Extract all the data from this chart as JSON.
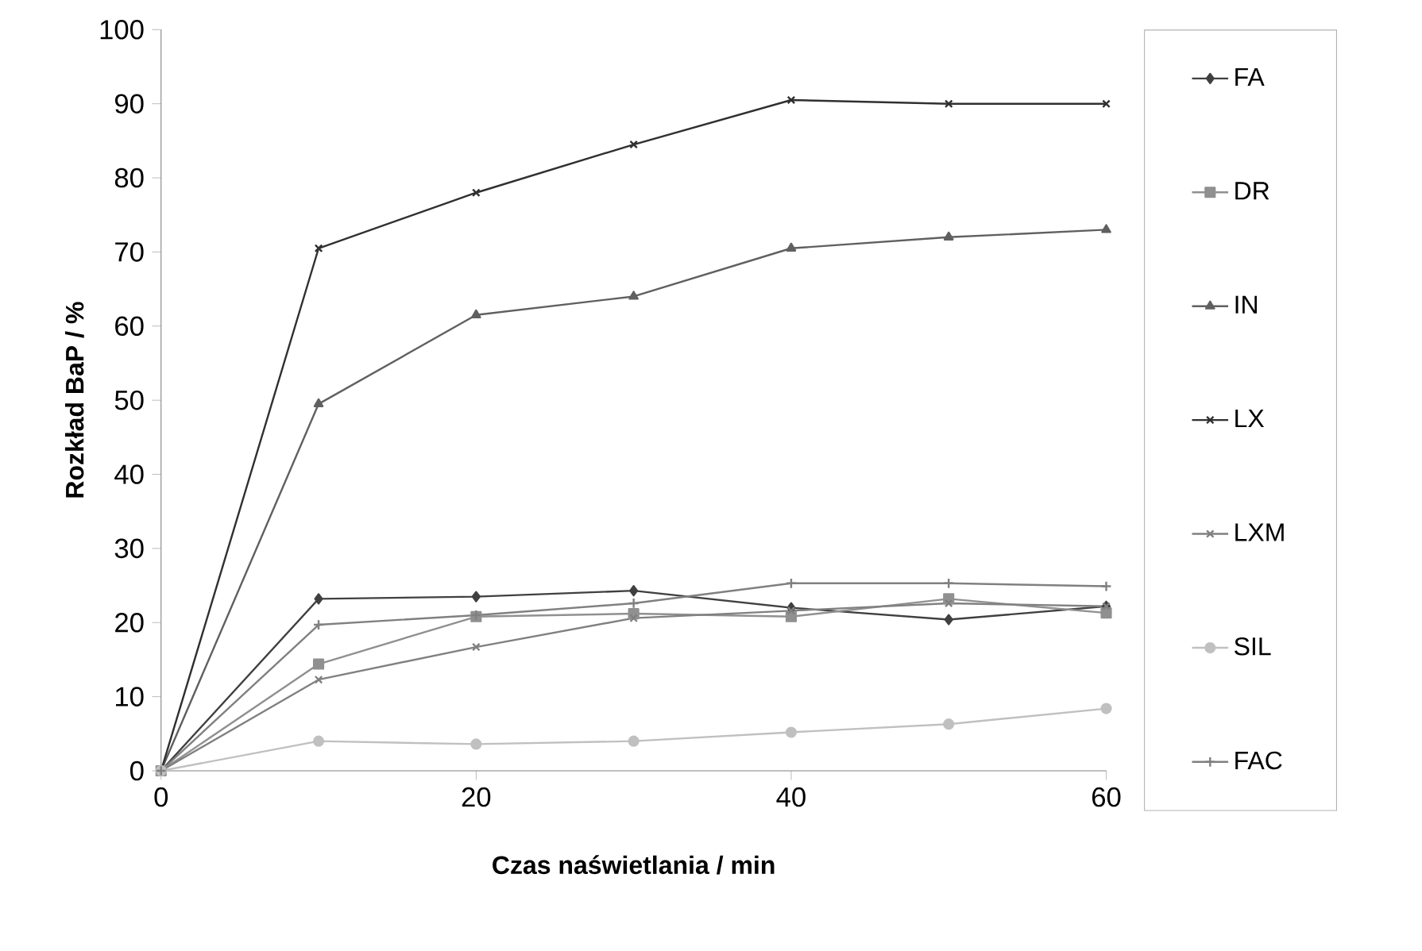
{
  "chart_data": {
    "type": "line",
    "xlabel": "Czas naświetlania  / min",
    "ylabel": "Rozkład BaP / %",
    "x": [
      0,
      10,
      20,
      30,
      40,
      50,
      60
    ],
    "xlim": [
      0,
      60
    ],
    "xticks": [
      0,
      20,
      40,
      60
    ],
    "ylim": [
      0,
      100
    ],
    "yticks": [
      0,
      10,
      20,
      30,
      40,
      50,
      60,
      70,
      80,
      90,
      100
    ],
    "grid": false,
    "legend": "right",
    "line_style": "solid",
    "series": [
      {
        "name": "FA",
        "color": "#404040",
        "marker": "diamond",
        "values": [
          0,
          23.2,
          23.5,
          24.3,
          22.0,
          20.4,
          22.2
        ]
      },
      {
        "name": "DR",
        "color": "#909090",
        "marker": "square",
        "values": [
          0,
          14.4,
          20.8,
          21.2,
          20.8,
          23.2,
          21.3
        ]
      },
      {
        "name": "IN",
        "color": "#606060",
        "marker": "triangle",
        "values": [
          0,
          49.5,
          61.5,
          64,
          70.5,
          72,
          73
        ]
      },
      {
        "name": "LX",
        "color": "#303030",
        "marker": "cross",
        "values": [
          0,
          70.5,
          78,
          84.5,
          90.5,
          90,
          90
        ]
      },
      {
        "name": "LXM",
        "color": "#808080",
        "marker": "cross",
        "values": [
          0,
          12.3,
          16.7,
          20.6,
          21.6,
          22.6,
          22.2
        ]
      },
      {
        "name": "SIL",
        "color": "#c0c0c0",
        "marker": "circle",
        "values": [
          0,
          4.0,
          3.6,
          4.0,
          5.2,
          6.3,
          8.4
        ]
      },
      {
        "name": "FAC",
        "color": "#808080",
        "marker": "plus",
        "values": [
          0,
          19.7,
          21.0,
          22.6,
          25.3,
          25.3,
          24.9
        ]
      }
    ]
  }
}
